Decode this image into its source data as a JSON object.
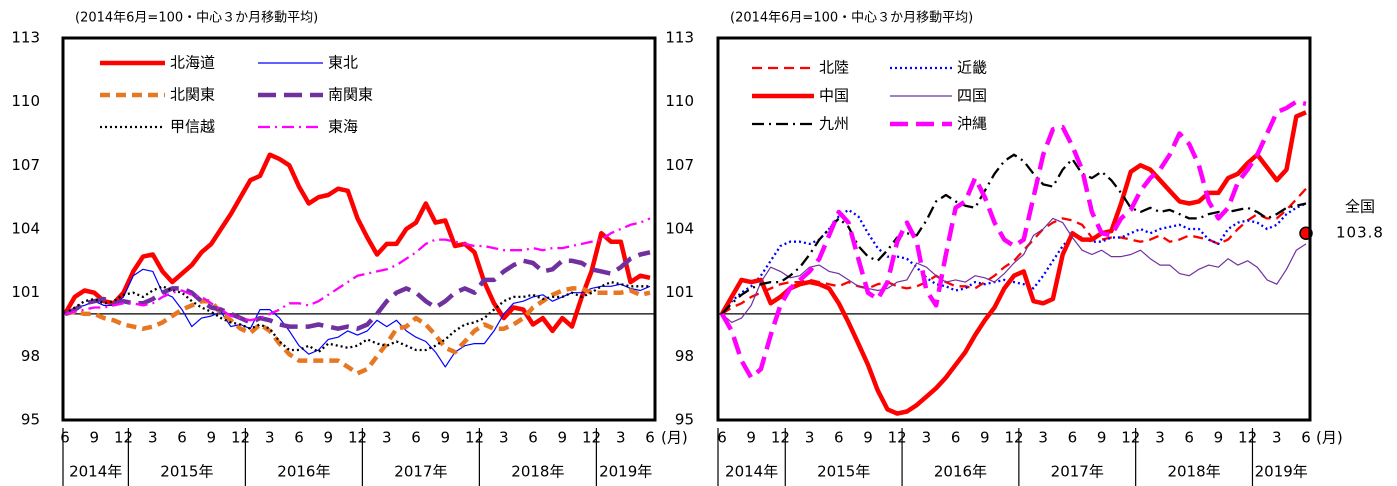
{
  "chart_data": [
    {
      "type": "line",
      "subtitle": "(2014年6月=100・中心３か月移動平均)",
      "categories": [
        "6",
        null,
        null,
        "9",
        null,
        null,
        "12",
        null,
        null,
        "3",
        null,
        null,
        "6",
        null,
        null,
        "9",
        null,
        null,
        "12",
        null,
        null,
        "3",
        null,
        null,
        "6",
        null,
        null,
        "9",
        null,
        null,
        "12",
        null,
        null,
        "3",
        null,
        null,
        "6",
        null,
        null,
        "9",
        null,
        null,
        "12",
        null,
        null,
        "3",
        null,
        null,
        "6",
        null,
        null,
        "9",
        null,
        null,
        "12",
        null,
        null,
        "3",
        null,
        null,
        "6"
      ],
      "x_unit": "(月)",
      "year_labels": [
        "2014年",
        "2015年",
        "2016年",
        "2017年",
        "2018年",
        "2019年"
      ],
      "ylim": [
        95,
        113
      ],
      "yticks": [
        95,
        98,
        101,
        104,
        107,
        110,
        113
      ],
      "grid": false,
      "hline": 100,
      "series": [
        {
          "name": "北海道",
          "color": "#ff0000",
          "style": "solid",
          "weight": "thick",
          "values": [
            100,
            100.8,
            101.1,
            101,
            100.6,
            100.5,
            101,
            102,
            102.7,
            102.8,
            102,
            101.5,
            101.9,
            102.3,
            102.9,
            103.3,
            104,
            104.7,
            105.5,
            106.3,
            106.5,
            107.5,
            107.3,
            107,
            106,
            105.2,
            105.5,
            105.6,
            105.9,
            105.8,
            104.5,
            103.6,
            102.8,
            103.3,
            103.3,
            104,
            104.3,
            105.2,
            104.3,
            104.4,
            103.2,
            103.3,
            102.9,
            101.5,
            100.5,
            99.8,
            100.3,
            100.2,
            99.5,
            99.8,
            99.2,
            99.8,
            99.4,
            100.8,
            102,
            103.8,
            103.4,
            103.4,
            101.5,
            101.8,
            101.7
          ]
        },
        {
          "name": "東北",
          "color": "#0000ff",
          "style": "solid",
          "weight": "thin",
          "values": [
            100,
            100.3,
            100.4,
            100.6,
            100.4,
            100.4,
            100.8,
            101.8,
            102.1,
            102,
            101,
            100.8,
            100.2,
            99.4,
            99.8,
            99.9,
            100.1,
            99.4,
            99.5,
            99.3,
            100.2,
            100.2,
            99.8,
            99.2,
            98.5,
            98.1,
            98.3,
            98.8,
            98.9,
            99.2,
            99,
            99.2,
            99.7,
            99.4,
            99.7,
            99.2,
            98.9,
            98.7,
            98.2,
            97.5,
            98.2,
            98.5,
            98.6,
            98.6,
            99.2,
            100,
            100.5,
            100.6,
            100.8,
            100.9,
            100.6,
            100.8,
            101,
            101,
            101.2,
            101.3,
            101.3,
            101.4,
            101.2,
            101.1,
            101.3
          ]
        },
        {
          "name": "北関東",
          "color": "#e87722",
          "style": "dashed",
          "weight": "thick",
          "values": [
            100,
            100.1,
            100,
            100,
            99.8,
            99.7,
            99.5,
            99.4,
            99.3,
            99.4,
            99.6,
            99.9,
            100.2,
            100.4,
            100.6,
            100.6,
            100,
            99.7,
            99.3,
            99.1,
            99.5,
            99.2,
            98.6,
            98.1,
            97.8,
            97.8,
            97.8,
            97.8,
            97.8,
            97.5,
            97.2,
            97.4,
            98,
            98.6,
            99.3,
            99.4,
            99.8,
            99.5,
            99,
            98.4,
            98.2,
            98.7,
            99.2,
            99.5,
            99.3,
            99.3,
            99.5,
            99.8,
            100.3,
            100.6,
            100.9,
            101.1,
            101.2,
            101.2,
            101,
            101,
            101,
            101,
            101.1,
            100.9,
            101
          ]
        },
        {
          "name": "南関東",
          "color": "#7030a0",
          "style": "longdash",
          "weight": "thick",
          "values": [
            100,
            100.2,
            100.5,
            100.6,
            100.7,
            100.5,
            100.6,
            100.5,
            100.5,
            100.7,
            101,
            101.2,
            101.2,
            101,
            100.6,
            100.3,
            100.2,
            100,
            99.8,
            99.6,
            99.8,
            99.7,
            99.5,
            99.4,
            99.4,
            99.4,
            99.5,
            99.4,
            99.3,
            99.4,
            99.3,
            99.5,
            100,
            100.6,
            101,
            101.2,
            101,
            100.6,
            100.3,
            100.6,
            101,
            101.2,
            101,
            101.6,
            101.6,
            102,
            102.3,
            102.5,
            102.4,
            102,
            102.1,
            102.5,
            102.5,
            102.4,
            102.1,
            102,
            101.9,
            102.2,
            102.6,
            102.8,
            102.9
          ]
        },
        {
          "name": "甲信越",
          "color": "#000000",
          "style": "dotted",
          "weight": "medium",
          "values": [
            100,
            100.3,
            100.6,
            100.7,
            100.5,
            100.6,
            100.9,
            101,
            100.8,
            101.1,
            101.3,
            101.1,
            101,
            100.6,
            100.3,
            100.1,
            99.8,
            99.6,
            99.5,
            99.3,
            99.5,
            99.3,
            98.7,
            98.3,
            98.3,
            98.5,
            98.2,
            98.6,
            98.5,
            98.4,
            98.5,
            98.8,
            98.6,
            98.5,
            98.7,
            98.5,
            98.3,
            98.3,
            98.5,
            98.8,
            99.2,
            99.5,
            99.6,
            99.8,
            100.2,
            100.6,
            100.8,
            100.8,
            100.9,
            100.7,
            100.8,
            100.8,
            101,
            100.8,
            101,
            101.3,
            101.5,
            101.4,
            101.3,
            101.3,
            101.3
          ]
        },
        {
          "name": "東海",
          "color": "#ff00ff",
          "style": "dashdot",
          "weight": "medium",
          "values": [
            100,
            100.1,
            100.2,
            100.3,
            100.3,
            100.4,
            100.5,
            100.5,
            100.4,
            100.5,
            100.8,
            101,
            101.1,
            100.9,
            100.8,
            100.5,
            100.2,
            99.9,
            99.8,
            99.7,
            99.8,
            100,
            100.2,
            100.5,
            100.5,
            100.4,
            100.6,
            100.9,
            101.2,
            101.5,
            101.8,
            101.9,
            102,
            102.1,
            102.3,
            102.6,
            102.9,
            103.3,
            103.5,
            103.5,
            103.4,
            103.3,
            103.2,
            103.2,
            103.1,
            103,
            103,
            103,
            103.1,
            103,
            103.1,
            103.1,
            103.2,
            103.3,
            103.4,
            103.5,
            103.8,
            104,
            104.2,
            104.3,
            104.5
          ]
        }
      ]
    },
    {
      "type": "line",
      "subtitle": "(2014年6月=100・中心３か月移動平均)",
      "categories": [
        "6",
        null,
        null,
        "9",
        null,
        null,
        "12",
        null,
        null,
        "3",
        null,
        null,
        "6",
        null,
        null,
        "9",
        null,
        null,
        "12",
        null,
        null,
        "3",
        null,
        null,
        "6",
        null,
        null,
        "9",
        null,
        null,
        "12",
        null,
        null,
        "3",
        null,
        null,
        "6",
        null,
        null,
        "9",
        null,
        null,
        "12",
        null,
        null,
        "3",
        null,
        null,
        "6",
        null,
        null,
        "9",
        null,
        null,
        "12",
        null,
        null,
        "3",
        null,
        null,
        "6"
      ],
      "x_unit": "(月)",
      "year_labels": [
        "2014年",
        "2015年",
        "2016年",
        "2017年",
        "2018年",
        "2019年"
      ],
      "ylim": [
        95,
        113
      ],
      "yticks": [
        95,
        98,
        101,
        104,
        107,
        110,
        113
      ],
      "grid": false,
      "hline": 100,
      "annotation": {
        "text": "全国",
        "value": 103.8,
        "color": "#ff0000"
      },
      "series": [
        {
          "name": "北陸",
          "color": "#ff0000",
          "style": "dashed",
          "weight": "medium",
          "values": [
            100,
            100.3,
            100.5,
            100.8,
            101,
            101.2,
            101.4,
            101.5,
            101.5,
            101.6,
            101.5,
            101.4,
            101.3,
            101.5,
            101.3,
            101.2,
            101.4,
            101.5,
            101.3,
            101.2,
            101.3,
            101.5,
            101.8,
            101.5,
            101.3,
            101.3,
            101.2,
            101.5,
            101.8,
            102.2,
            102.5,
            103,
            103.5,
            104,
            104.3,
            104.5,
            104.4,
            104.2,
            103.6,
            103.5,
            103.6,
            103.6,
            103.5,
            103.4,
            103.5,
            103.7,
            103.4,
            103.5,
            103.7,
            103.6,
            103.5,
            103.3,
            103.5,
            104,
            104.4,
            104.7,
            104.5,
            104.5,
            104.9,
            105.4,
            105.9
          ]
        },
        {
          "name": "近畿",
          "color": "#0000ff",
          "style": "dotted",
          "weight": "medium",
          "values": [
            100,
            100.6,
            101,
            101.3,
            101.8,
            102.5,
            103.2,
            103.4,
            103.4,
            103.3,
            103.5,
            104,
            104.6,
            104.9,
            104.6,
            103.8,
            103.1,
            102.7,
            102.7,
            102.6,
            102.2,
            101.7,
            101.4,
            101.3,
            101.1,
            101.2,
            101.5,
            101.4,
            101.5,
            101.6,
            101.5,
            101.4,
            101.2,
            101.8,
            102.5,
            103.2,
            103.7,
            103.6,
            103.4,
            103.4,
            103.6,
            103.6,
            103.8,
            104,
            103.8,
            104,
            104.1,
            104.2,
            104,
            104,
            103.5,
            103.3,
            104,
            104.3,
            104.4,
            104.3,
            104,
            104.2,
            104.7,
            105,
            105.2
          ]
        },
        {
          "name": "中国",
          "color": "#ff0000",
          "style": "solid",
          "weight": "thick",
          "values": [
            100,
            100.8,
            101.6,
            101.5,
            101.6,
            100.5,
            100.8,
            101.2,
            101.4,
            101.5,
            101.4,
            101.2,
            100.5,
            99.6,
            98.6,
            97.6,
            96.4,
            95.5,
            95.3,
            95.4,
            95.7,
            96.1,
            96.5,
            97,
            97.6,
            98.2,
            99,
            99.7,
            100.3,
            101.2,
            101.8,
            102,
            100.6,
            100.5,
            100.7,
            102.8,
            103.8,
            103.5,
            103.5,
            103.8,
            103.9,
            105.2,
            106.7,
            107,
            106.8,
            106.3,
            105.8,
            105.3,
            105.2,
            105.3,
            105.7,
            105.7,
            106.4,
            106.6,
            107.1,
            107.5,
            106.9,
            106.3,
            106.8,
            109.3,
            109.5
          ]
        },
        {
          "name": "四国",
          "color": "#7030a0",
          "style": "solid",
          "weight": "thin",
          "values": [
            100,
            99.6,
            99.8,
            100.4,
            101.5,
            102.2,
            102,
            101.7,
            101.8,
            102.2,
            102.3,
            102,
            101.9,
            101.6,
            101.3,
            101.2,
            101.1,
            101.2,
            101.5,
            101.6,
            102.4,
            102.2,
            101.8,
            101.5,
            101.6,
            101.5,
            101.8,
            101.7,
            101.5,
            101.9,
            102.4,
            102.8,
            103.7,
            104,
            104.5,
            104.3,
            103.6,
            103,
            102.8,
            103,
            102.7,
            102.7,
            102.8,
            103,
            102.6,
            102.3,
            102.3,
            101.9,
            101.8,
            102.1,
            102.3,
            102.2,
            102.6,
            102.3,
            102.5,
            102.2,
            101.6,
            101.4,
            102.1,
            103,
            103.3
          ]
        },
        {
          "name": "九州",
          "color": "#000000",
          "style": "dashdot",
          "weight": "medium",
          "values": [
            100,
            100.5,
            100.9,
            101.2,
            101.4,
            101.5,
            101.5,
            101.8,
            102.2,
            102.8,
            103.5,
            104,
            104.5,
            104.1,
            103.2,
            102.7,
            102.5,
            103,
            103.6,
            103.8,
            103.7,
            104.4,
            105.3,
            105.6,
            105.3,
            105.1,
            105,
            105.8,
            106.6,
            107.2,
            107.5,
            107.2,
            106.6,
            106.1,
            106,
            106.8,
            107.3,
            106.6,
            106.4,
            106.7,
            106.3,
            105.7,
            105,
            104.8,
            105,
            104.8,
            104.9,
            104.7,
            104.5,
            104.5,
            104.7,
            104.8,
            104.8,
            104.9,
            105,
            104.8,
            104.5,
            104.7,
            105,
            105.1,
            105.2
          ]
        },
        {
          "name": "沖縄",
          "color": "#ff00ff",
          "style": "longdash",
          "weight": "thick",
          "values": [
            100,
            99.2,
            97.8,
            97,
            97.4,
            99,
            100.4,
            101.2,
            101.6,
            102,
            102.6,
            103.7,
            104.8,
            104.3,
            102.6,
            101,
            100.7,
            101.5,
            103.4,
            104.3,
            103.4,
            101.1,
            100.4,
            102.8,
            105,
            105.3,
            106.4,
            105.5,
            104.3,
            103.5,
            103.2,
            103.5,
            105.5,
            107.5,
            108.7,
            108.8,
            107.9,
            106.8,
            104.8,
            103.8,
            103.7,
            104.5,
            104.9,
            105.8,
            106.4,
            106.8,
            107.5,
            108.5,
            108,
            107,
            105.3,
            104.5,
            105,
            106.2,
            106.8,
            107.5,
            108.5,
            109.5,
            109.7,
            110,
            109.9
          ]
        }
      ]
    }
  ]
}
